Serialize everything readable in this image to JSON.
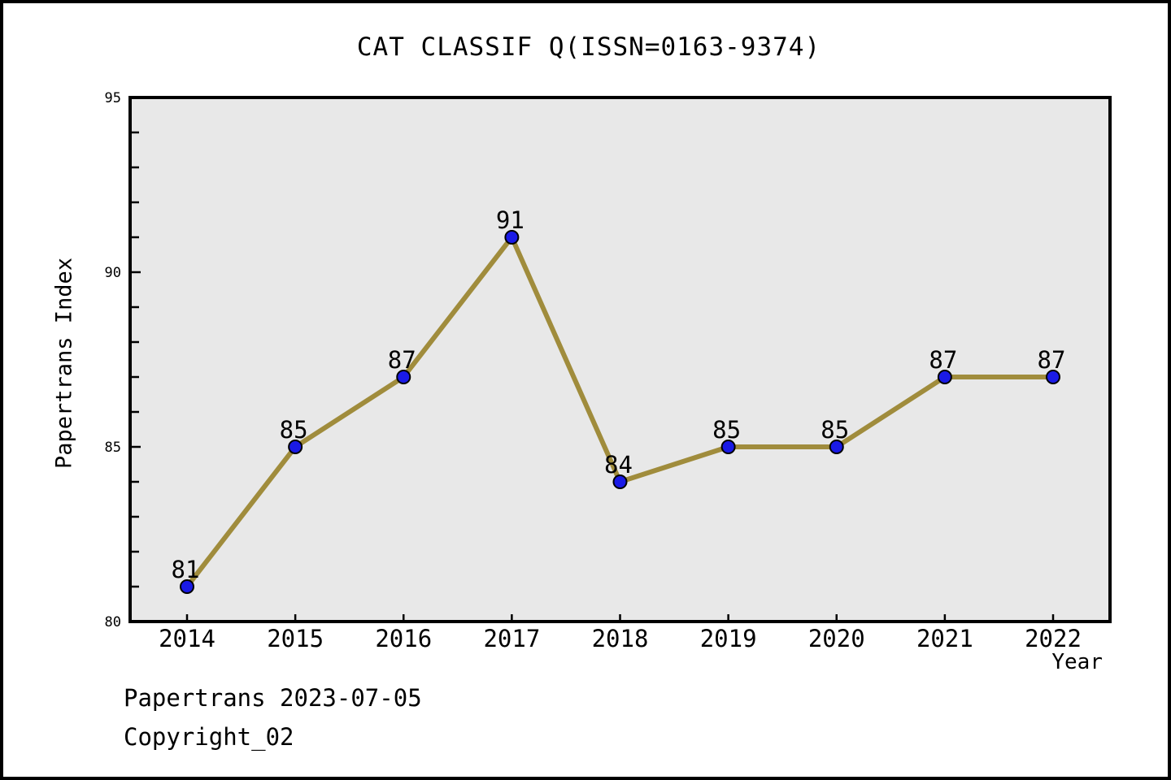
{
  "title": "CAT CLASSIF Q(ISSN=0163-9374)",
  "footer": {
    "line1": "Papertrans 2023-07-05",
    "line2": "Copyright_02"
  },
  "chart_data": {
    "type": "line",
    "title": "CAT CLASSIF Q(ISSN=0163-9374)",
    "categories": [
      "2014",
      "2015",
      "2016",
      "2017",
      "2018",
      "2019",
      "2020",
      "2021",
      "2022"
    ],
    "values": [
      81,
      85,
      87,
      91,
      84,
      85,
      85,
      87,
      87
    ],
    "point_labels": [
      "81",
      "85",
      "87",
      "91",
      "84",
      "85",
      "85",
      "87",
      "87"
    ],
    "xlabel": "Year",
    "ylabel": "Papertrans Index",
    "ylim": [
      80,
      95
    ],
    "yticks_major": [
      80,
      85,
      90,
      95
    ],
    "ytick_minor_step": 1,
    "grid": false,
    "legend": "none",
    "colors": {
      "line": "#a08c3c",
      "marker": "#1a1ae6",
      "marker_edge": "#000000",
      "plot_bg": "#e8e8e8",
      "frame": "#000000",
      "text": "#000000"
    }
  }
}
